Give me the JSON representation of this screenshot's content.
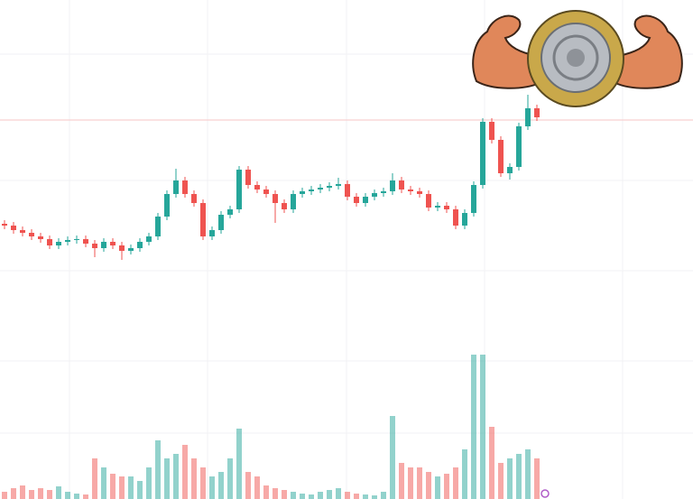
{
  "chart_data": {
    "type": "candlestick",
    "open": [
      305,
      303,
      298,
      295,
      291,
      288,
      281,
      285,
      287,
      288,
      283,
      278,
      285,
      281,
      275,
      278,
      285,
      291,
      313,
      338,
      353,
      338,
      328,
      291,
      298,
      315,
      321,
      365,
      348,
      343,
      338,
      328,
      321,
      338,
      341,
      343,
      345,
      347,
      349,
      335,
      328,
      335,
      339,
      341,
      353,
      343,
      341,
      338,
      323,
      325,
      321,
      303,
      317,
      348,
      418,
      398,
      361,
      368,
      413,
      433
    ],
    "high": [
      309,
      307,
      302,
      299,
      295,
      292,
      289,
      291,
      292,
      292,
      287,
      289,
      289,
      285,
      282,
      289,
      295,
      317,
      342,
      366,
      357,
      342,
      332,
      302,
      319,
      325,
      369,
      369,
      352,
      347,
      342,
      332,
      342,
      345,
      347,
      349,
      351,
      356,
      353,
      339,
      339,
      343,
      345,
      361,
      357,
      347,
      345,
      342,
      329,
      329,
      325,
      321,
      352,
      422,
      422,
      402,
      372,
      417,
      448,
      437
    ],
    "low": [
      299,
      294,
      291,
      287,
      284,
      277,
      277,
      281,
      283,
      279,
      268,
      274,
      277,
      265,
      271,
      274,
      281,
      287,
      309,
      334,
      334,
      324,
      287,
      287,
      294,
      311,
      317,
      344,
      339,
      334,
      306,
      317,
      317,
      334,
      337,
      339,
      341,
      343,
      331,
      324,
      324,
      331,
      335,
      337,
      339,
      337,
      334,
      319,
      319,
      317,
      299,
      299,
      313,
      344,
      394,
      357,
      354,
      364,
      409,
      419
    ],
    "close": [
      303,
      298,
      295,
      291,
      288,
      281,
      285,
      287,
      288,
      283,
      278,
      285,
      281,
      275,
      278,
      285,
      291,
      313,
      338,
      353,
      338,
      328,
      291,
      298,
      315,
      321,
      365,
      348,
      343,
      338,
      328,
      321,
      338,
      341,
      343,
      345,
      347,
      349,
      335,
      328,
      335,
      339,
      341,
      353,
      343,
      341,
      338,
      323,
      325,
      321,
      303,
      317,
      348,
      418,
      398,
      361,
      368,
      413,
      433,
      423
    ],
    "volume": [
      8,
      12,
      15,
      10,
      12,
      10,
      14,
      8,
      6,
      5,
      45,
      35,
      28,
      25,
      25,
      20,
      35,
      65,
      45,
      50,
      60,
      45,
      35,
      25,
      30,
      45,
      78,
      30,
      25,
      15,
      12,
      10,
      8,
      6,
      5,
      8,
      10,
      12,
      8,
      6,
      5,
      4,
      8,
      92,
      40,
      35,
      35,
      30,
      25,
      28,
      35,
      55,
      160,
      160,
      80,
      40,
      45,
      50,
      55,
      45
    ],
    "up_color": "#26a69a",
    "down_color": "#ef5350",
    "ylim": [
      0,
      553
    ],
    "volume_lim": [
      0,
      553
    ],
    "price_line": 420,
    "price_line_color": "#f7c6c6"
  }
}
